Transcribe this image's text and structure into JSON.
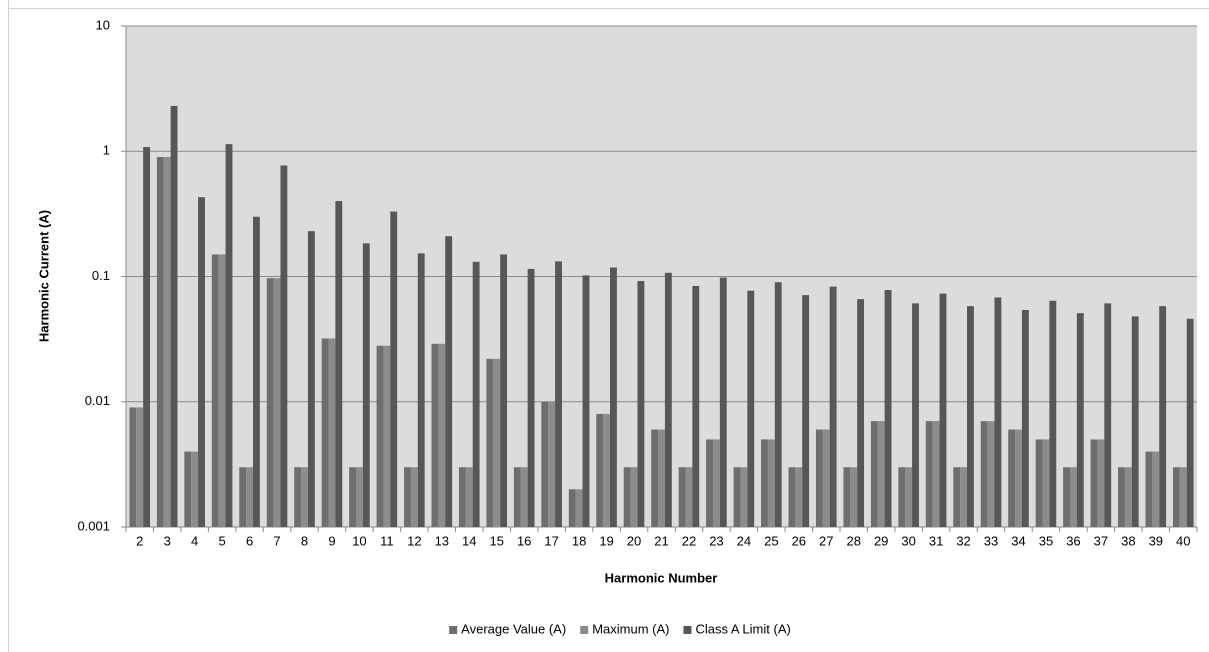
{
  "chart_data": {
    "type": "bar",
    "x_label": "Harmonic Number",
    "y_label": "Harmonic Current (A)",
    "categories": [
      "2",
      "3",
      "4",
      "5",
      "6",
      "7",
      "8",
      "9",
      "10",
      "11",
      "12",
      "13",
      "14",
      "15",
      "16",
      "17",
      "18",
      "19",
      "20",
      "21",
      "22",
      "23",
      "24",
      "25",
      "26",
      "27",
      "28",
      "29",
      "30",
      "31",
      "32",
      "33",
      "34",
      "35",
      "36",
      "37",
      "38",
      "39",
      "40"
    ],
    "series": [
      {
        "name": "Average Value (A)",
        "color": "#6e6e6e",
        "values": [
          0.009,
          0.9,
          0.004,
          0.15,
          0.003,
          0.097,
          0.003,
          0.032,
          0.003,
          0.028,
          0.003,
          0.029,
          0.003,
          0.022,
          0.003,
          0.01,
          0.002,
          0.008,
          0.003,
          0.006,
          0.003,
          0.005,
          0.003,
          0.005,
          0.003,
          0.006,
          0.003,
          0.007,
          0.003,
          0.007,
          0.003,
          0.007,
          0.006,
          0.005,
          0.003,
          0.005,
          0.003,
          0.004,
          0.003
        ]
      },
      {
        "name": "Maximum (A)",
        "color": "#8c8c8c",
        "values": [
          0.009,
          0.9,
          0.004,
          0.15,
          0.003,
          0.097,
          0.003,
          0.032,
          0.003,
          0.028,
          0.003,
          0.029,
          0.003,
          0.022,
          0.003,
          0.01,
          0.002,
          0.008,
          0.003,
          0.006,
          0.003,
          0.005,
          0.003,
          0.005,
          0.003,
          0.006,
          0.003,
          0.007,
          0.003,
          0.007,
          0.003,
          0.007,
          0.006,
          0.005,
          0.003,
          0.005,
          0.003,
          0.004,
          0.003
        ]
      },
      {
        "name": "Class A Limit (A)",
        "color": "#575757",
        "values": [
          1.08,
          2.3,
          0.43,
          1.14,
          0.3,
          0.77,
          0.23,
          0.4,
          0.184,
          0.33,
          0.153,
          0.21,
          0.131,
          0.15,
          0.115,
          0.132,
          0.102,
          0.118,
          0.092,
          0.107,
          0.084,
          0.098,
          0.077,
          0.09,
          0.071,
          0.083,
          0.066,
          0.078,
          0.061,
          0.073,
          0.058,
          0.068,
          0.054,
          0.064,
          0.051,
          0.061,
          0.048,
          0.058,
          0.046
        ]
      }
    ],
    "ylim": [
      0.001,
      10
    ],
    "yticks": [
      0.001,
      0.01,
      0.1,
      1,
      10
    ],
    "log_y": true,
    "grid": true,
    "legend": "bottom"
  }
}
